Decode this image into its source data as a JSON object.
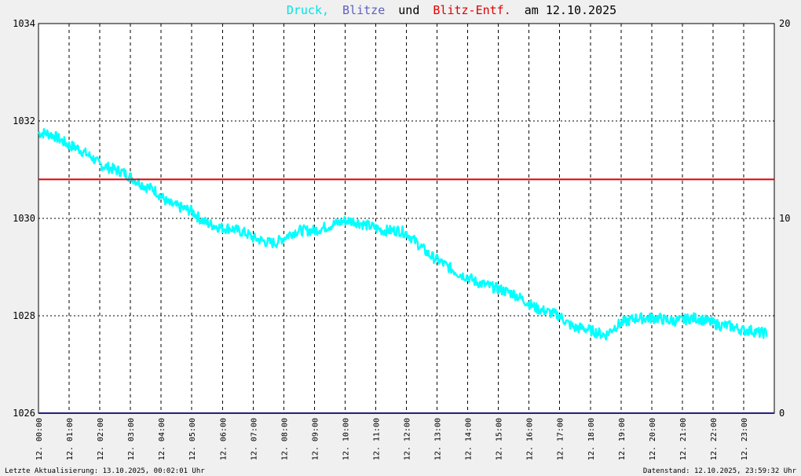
{
  "chart_data": {
    "type": "line",
    "title_parts": [
      {
        "text": "Druck,",
        "color": "#00e5e5"
      },
      {
        "text": "Blitze",
        "color": "#6060c0"
      },
      {
        "text": "und",
        "color": "#000000"
      },
      {
        "text": "Blitz-Entf.",
        "color": "#e00000"
      },
      {
        "text": "am 12.10.2025",
        "color": "#000000"
      }
    ],
    "x_tick_labels": [
      "12. 00:00",
      "12. 01:00",
      "12. 02:00",
      "12. 03:00",
      "12. 04:00",
      "12. 05:00",
      "12. 06:00",
      "12. 07:00",
      "12. 08:00",
      "12. 09:00",
      "12. 10:00",
      "12. 11:00",
      "12. 12:00",
      "12. 13:00",
      "12. 14:00",
      "12. 15:00",
      "12. 16:00",
      "12. 17:00",
      "12. 18:00",
      "12. 19:00",
      "12. 20:00",
      "12. 21:00",
      "12. 22:00",
      "12. 23:00"
    ],
    "xlim": [
      0,
      24
    ],
    "ylim_left": [
      1026,
      1034
    ],
    "y_ticks_left": [
      "1026",
      "1028",
      "1030",
      "1032",
      "1034"
    ],
    "ylim_right": [
      0,
      20
    ],
    "y_ticks_right": [
      "0",
      "10",
      "20"
    ],
    "grid": true,
    "series": [
      {
        "name": "Druck",
        "color": "#00ffff",
        "axis": "left",
        "x": [
          0,
          0.25,
          0.5,
          0.75,
          1,
          1.25,
          1.5,
          1.75,
          2,
          2.25,
          2.5,
          2.75,
          3,
          3.25,
          3.5,
          3.75,
          4,
          4.25,
          4.5,
          4.75,
          5,
          5.25,
          5.5,
          5.75,
          6,
          6.25,
          6.5,
          6.75,
          7,
          7.25,
          7.5,
          7.75,
          8,
          8.25,
          8.5,
          8.75,
          9,
          9.25,
          9.5,
          9.75,
          10,
          10.25,
          10.5,
          10.75,
          11,
          11.25,
          11.5,
          11.75,
          12,
          12.25,
          12.5,
          12.75,
          13,
          13.25,
          13.5,
          13.75,
          14,
          14.25,
          14.5,
          14.75,
          15,
          15.25,
          15.5,
          15.75,
          16,
          16.25,
          16.5,
          16.75,
          17,
          17.25,
          17.5,
          17.75,
          18,
          18.25,
          18.5,
          18.75,
          19,
          19.25,
          19.5,
          19.75,
          20,
          20.25,
          20.5,
          20.75,
          21,
          21.25,
          21.5,
          21.75,
          22,
          22.25,
          22.5,
          22.75,
          23,
          23.25,
          23.5,
          23.75
        ],
        "y": [
          1031.75,
          1031.75,
          1031.7,
          1031.6,
          1031.5,
          1031.45,
          1031.35,
          1031.25,
          1031.1,
          1031.05,
          1031.0,
          1030.95,
          1030.85,
          1030.75,
          1030.65,
          1030.6,
          1030.45,
          1030.3,
          1030.25,
          1030.2,
          1030.15,
          1030.0,
          1029.9,
          1029.85,
          1029.8,
          1029.8,
          1029.75,
          1029.7,
          1029.6,
          1029.55,
          1029.5,
          1029.5,
          1029.6,
          1029.7,
          1029.75,
          1029.75,
          1029.75,
          1029.8,
          1029.85,
          1029.9,
          1029.95,
          1029.95,
          1029.9,
          1029.85,
          1029.8,
          1029.75,
          1029.75,
          1029.75,
          1029.7,
          1029.55,
          1029.4,
          1029.25,
          1029.15,
          1029.05,
          1028.95,
          1028.85,
          1028.8,
          1028.7,
          1028.65,
          1028.6,
          1028.55,
          1028.5,
          1028.45,
          1028.35,
          1028.25,
          1028.15,
          1028.1,
          1028.05,
          1028.0,
          1027.85,
          1027.75,
          1027.75,
          1027.7,
          1027.65,
          1027.6,
          1027.75,
          1027.85,
          1027.9,
          1027.95,
          1027.95,
          1027.95,
          1027.95,
          1027.9,
          1027.9,
          1027.9,
          1027.95,
          1027.95,
          1027.9,
          1027.85,
          1027.8,
          1027.8,
          1027.75,
          1027.7,
          1027.7,
          1027.65,
          1027.65
        ]
      },
      {
        "name": "Blitz-Entf.",
        "color": "#e00000",
        "axis": "right",
        "x": [
          0,
          24
        ],
        "y": [
          12,
          12
        ]
      },
      {
        "name": "Blitze",
        "color": "#202080",
        "axis": "right",
        "x": [
          0,
          24
        ],
        "y": [
          0,
          0
        ]
      }
    ],
    "footer_left": "Letzte Aktualisierung: 13.10.2025, 00:02:01 Uhr",
    "footer_right": "Datenstand: 12.10.2025, 23:59:32 Uhr"
  }
}
